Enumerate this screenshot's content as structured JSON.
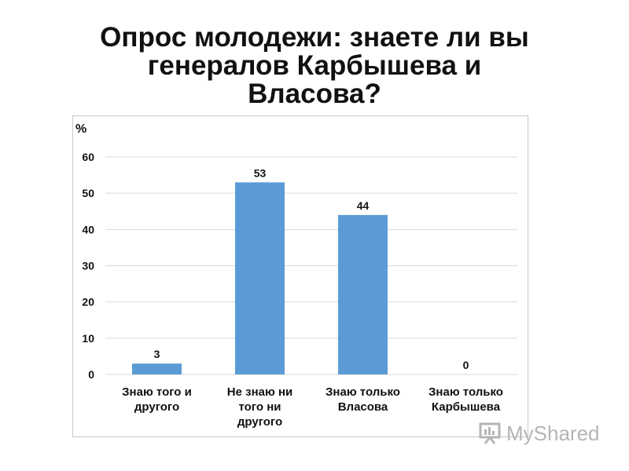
{
  "slide": {
    "title_lines": [
      "Опрос молодежи: знаете ли вы",
      "генералов Карбышева и",
      "Власова?"
    ]
  },
  "chart_data": {
    "type": "bar",
    "title": "",
    "ylabel": "%",
    "ylim": [
      0,
      60
    ],
    "yticks": [
      0,
      10,
      20,
      30,
      40,
      50,
      60
    ],
    "grid": true,
    "categories": [
      [
        "Знаю того и",
        "другого"
      ],
      [
        "Не знаю ни",
        "того ни",
        "другого"
      ],
      [
        "Знаю только",
        "Власова"
      ],
      [
        "Знаю только",
        "Карбышева"
      ]
    ],
    "values": [
      3,
      53,
      44,
      0
    ],
    "bar_color": "#5b9bd5",
    "grid_color": "#d9d9d9"
  },
  "watermark": {
    "text": "MyShared"
  }
}
